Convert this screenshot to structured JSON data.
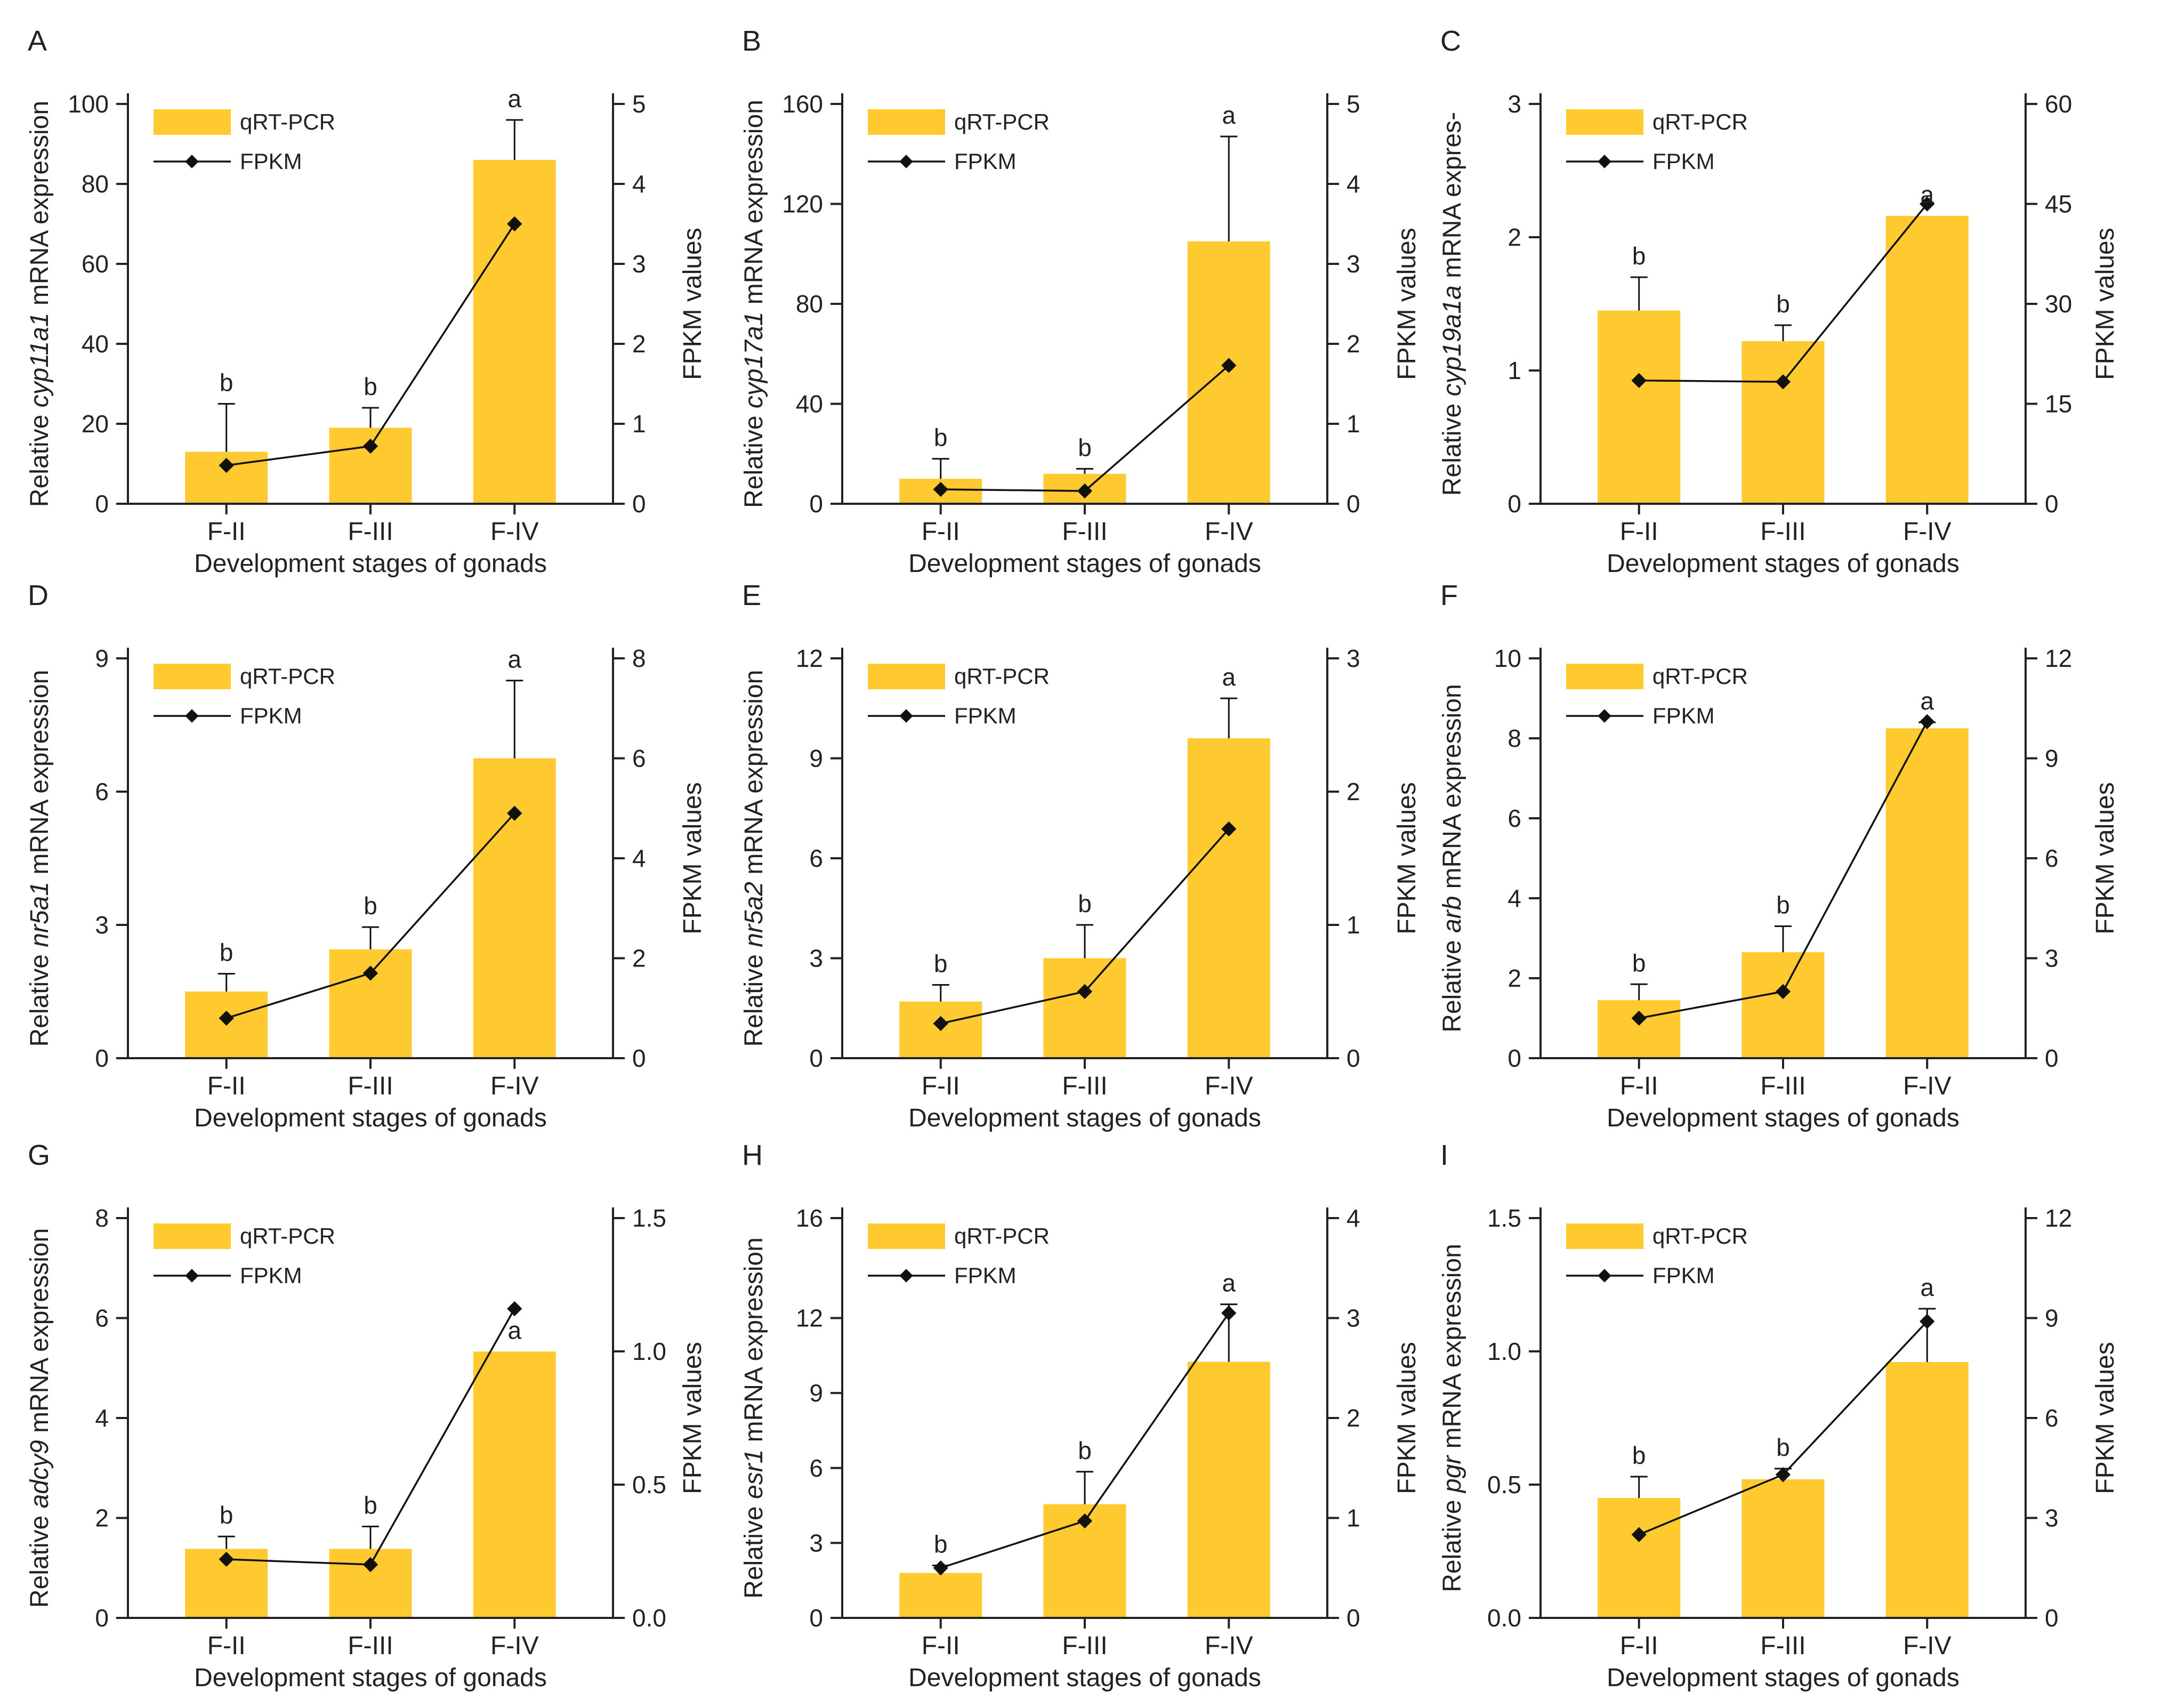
{
  "figure": {
    "colors": {
      "bar": "#FFC930",
      "line": "#111111",
      "axis": "#222222"
    },
    "shared": {
      "categories": [
        "F-II",
        "F-III",
        "F-IV"
      ],
      "xlabel": "Development stages of gonads",
      "y2label": "FPKM values",
      "legend_bar": "qRT-PCR",
      "legend_line": "FPKM",
      "ylabel_prefix": "Relative ",
      "ylabel_suffix": " mRNA expression"
    }
  },
  "chart_data": [
    {
      "panel": "A",
      "type": "bar+line",
      "gene": "cyp11a1",
      "categories": [
        "F-II",
        "F-III",
        "F-IV"
      ],
      "ylabel_suffix": " mRNA expression",
      "ylim": [
        0,
        100
      ],
      "yticks": [
        "0",
        "20",
        "40",
        "60",
        "80",
        "100"
      ],
      "y2lim": [
        0,
        5
      ],
      "y2ticks": [
        "0",
        "1",
        "2",
        "3",
        "4",
        "5"
      ],
      "series": [
        {
          "name": "qRT-PCR",
          "type": "bar",
          "values": [
            13,
            19,
            86
          ],
          "errors": [
            12,
            5,
            10
          ],
          "sig": [
            "b",
            "b",
            "a"
          ]
        },
        {
          "name": "FPKM",
          "type": "line",
          "values": [
            0.48,
            0.72,
            3.5
          ]
        }
      ]
    },
    {
      "panel": "B",
      "type": "bar+line",
      "gene": "cyp17a1",
      "categories": [
        "F-II",
        "F-III",
        "F-IV"
      ],
      "ylabel_suffix": " mRNA expression",
      "ylim": [
        0,
        160
      ],
      "yticks": [
        "0",
        "40",
        "80",
        "120",
        "160"
      ],
      "y2lim": [
        0,
        5
      ],
      "y2ticks": [
        "0",
        "1",
        "2",
        "3",
        "4",
        "5"
      ],
      "series": [
        {
          "name": "qRT-PCR",
          "type": "bar",
          "values": [
            10,
            12,
            105
          ],
          "errors": [
            8,
            2,
            42
          ],
          "sig": [
            "b",
            "b",
            "a"
          ]
        },
        {
          "name": "FPKM",
          "type": "line",
          "values": [
            0.18,
            0.16,
            1.73
          ]
        }
      ]
    },
    {
      "panel": "C",
      "type": "bar+line",
      "gene": "cyp19a1a",
      "categories": [
        "F-II",
        "F-III",
        "F-IV"
      ],
      "ylabel_suffix": " mRNA expres-",
      "ylim": [
        0,
        3
      ],
      "yticks": [
        "0",
        "1",
        "2",
        "3"
      ],
      "y2lim": [
        0,
        60
      ],
      "y2ticks": [
        "0",
        "15",
        "30",
        "45",
        "60"
      ],
      "series": [
        {
          "name": "qRT-PCR",
          "type": "bar",
          "values": [
            1.45,
            1.22,
            2.16
          ],
          "errors": [
            0.25,
            0.12,
            0
          ],
          "sig": [
            "b",
            "b",
            "a"
          ]
        },
        {
          "name": "FPKM",
          "type": "line",
          "values": [
            18.5,
            18.3,
            45
          ]
        }
      ]
    },
    {
      "panel": "D",
      "type": "bar+line",
      "gene": "nr5a1",
      "categories": [
        "F-II",
        "F-III",
        "F-IV"
      ],
      "ylabel_suffix": " mRNA expression",
      "ylim": [
        0,
        9
      ],
      "yticks": [
        "0",
        "3",
        "6",
        "9"
      ],
      "y2lim": [
        0,
        8
      ],
      "y2ticks": [
        "0",
        "2",
        "4",
        "6",
        "8"
      ],
      "series": [
        {
          "name": "qRT-PCR",
          "type": "bar",
          "values": [
            1.5,
            2.45,
            6.75
          ],
          "errors": [
            0.4,
            0.5,
            1.75
          ],
          "sig": [
            "b",
            "b",
            "a"
          ]
        },
        {
          "name": "FPKM",
          "type": "line",
          "values": [
            0.8,
            1.7,
            4.9
          ]
        }
      ]
    },
    {
      "panel": "E",
      "type": "bar+line",
      "gene": "nr5a2",
      "categories": [
        "F-II",
        "F-III",
        "F-IV"
      ],
      "ylabel_suffix": " mRNA expression",
      "ylim": [
        0,
        12
      ],
      "yticks": [
        "0",
        "3",
        "6",
        "9",
        "12"
      ],
      "y2lim": [
        0,
        3
      ],
      "y2ticks": [
        "0",
        "1",
        "2",
        "3"
      ],
      "series": [
        {
          "name": "qRT-PCR",
          "type": "bar",
          "values": [
            1.7,
            3.0,
            9.6
          ],
          "errors": [
            0.5,
            1.0,
            1.2
          ],
          "sig": [
            "b",
            "b",
            "a"
          ]
        },
        {
          "name": "FPKM",
          "type": "line",
          "values": [
            0.26,
            0.5,
            1.72
          ]
        }
      ]
    },
    {
      "panel": "F",
      "type": "bar+line",
      "gene": "arb",
      "categories": [
        "F-II",
        "F-III",
        "F-IV"
      ],
      "ylabel_suffix": " mRNA expression",
      "ylim": [
        0,
        10
      ],
      "yticks": [
        "0",
        "2",
        "4",
        "6",
        "8",
        "10"
      ],
      "y2lim": [
        0,
        12
      ],
      "y2ticks": [
        "0",
        "3",
        "6",
        "9",
        "12"
      ],
      "series": [
        {
          "name": "qRT-PCR",
          "type": "bar",
          "values": [
            1.45,
            2.65,
            8.25
          ],
          "errors": [
            0.4,
            0.65,
            0.15
          ],
          "sig": [
            "b",
            "b",
            "a"
          ]
        },
        {
          "name": "FPKM",
          "type": "line",
          "values": [
            1.2,
            2.0,
            10.1
          ]
        }
      ]
    },
    {
      "panel": "G",
      "type": "bar+line",
      "gene": "adcy9",
      "categories": [
        "F-II",
        "F-III",
        "F-IV"
      ],
      "ylabel_suffix": " mRNA expression",
      "ylim": [
        0,
        8
      ],
      "yticks": [
        "0",
        "2",
        "4",
        "6",
        "8"
      ],
      "y2lim": [
        0,
        1.5
      ],
      "y2ticks": [
        "0.0",
        "0.5",
        "1.0",
        "1.5"
      ],
      "series": [
        {
          "name": "qRT-PCR",
          "type": "bar",
          "values": [
            1.38,
            1.38,
            5.33
          ],
          "errors": [
            0.25,
            0.45,
            0
          ],
          "sig": [
            "b",
            "b",
            "a"
          ]
        },
        {
          "name": "FPKM",
          "type": "line",
          "values": [
            0.22,
            0.2,
            1.16
          ]
        }
      ]
    },
    {
      "panel": "H",
      "type": "bar+line",
      "gene": "esr1",
      "categories": [
        "F-II",
        "F-III",
        "F-IV"
      ],
      "ylabel_suffix": " mRNA expression",
      "ylim": [
        0,
        16
      ],
      "yticks": [
        "0",
        "3",
        "6",
        "9",
        "12",
        "16"
      ],
      "y2lim": [
        0,
        4
      ],
      "y2ticks": [
        "0",
        "1",
        "2",
        "3",
        "4"
      ],
      "series": [
        {
          "name": "qRT-PCR",
          "type": "bar",
          "values": [
            1.8,
            4.55,
            10.25
          ],
          "errors": [
            0.3,
            1.3,
            2.3
          ],
          "sig": [
            "b",
            "b",
            "a"
          ]
        },
        {
          "name": "FPKM",
          "type": "line",
          "values": [
            0.5,
            0.97,
            3.05
          ]
        }
      ]
    },
    {
      "panel": "I",
      "type": "bar+line",
      "gene": "pgr",
      "categories": [
        "F-II",
        "F-III",
        "F-IV"
      ],
      "ylabel_suffix": " mRNA expression",
      "ylim": [
        0,
        1.5
      ],
      "yticks": [
        "0.0",
        "0.5",
        "1.0",
        "1.5"
      ],
      "y2lim": [
        0,
        12
      ],
      "y2ticks": [
        "0",
        "3",
        "6",
        "9",
        "12"
      ],
      "series": [
        {
          "name": "qRT-PCR",
          "type": "bar",
          "values": [
            0.45,
            0.52,
            0.96
          ],
          "errors": [
            0.08,
            0.04,
            0.2
          ],
          "sig": [
            "b",
            "b",
            "a"
          ]
        },
        {
          "name": "FPKM",
          "type": "line",
          "values": [
            2.5,
            4.3,
            8.9
          ]
        }
      ]
    }
  ]
}
